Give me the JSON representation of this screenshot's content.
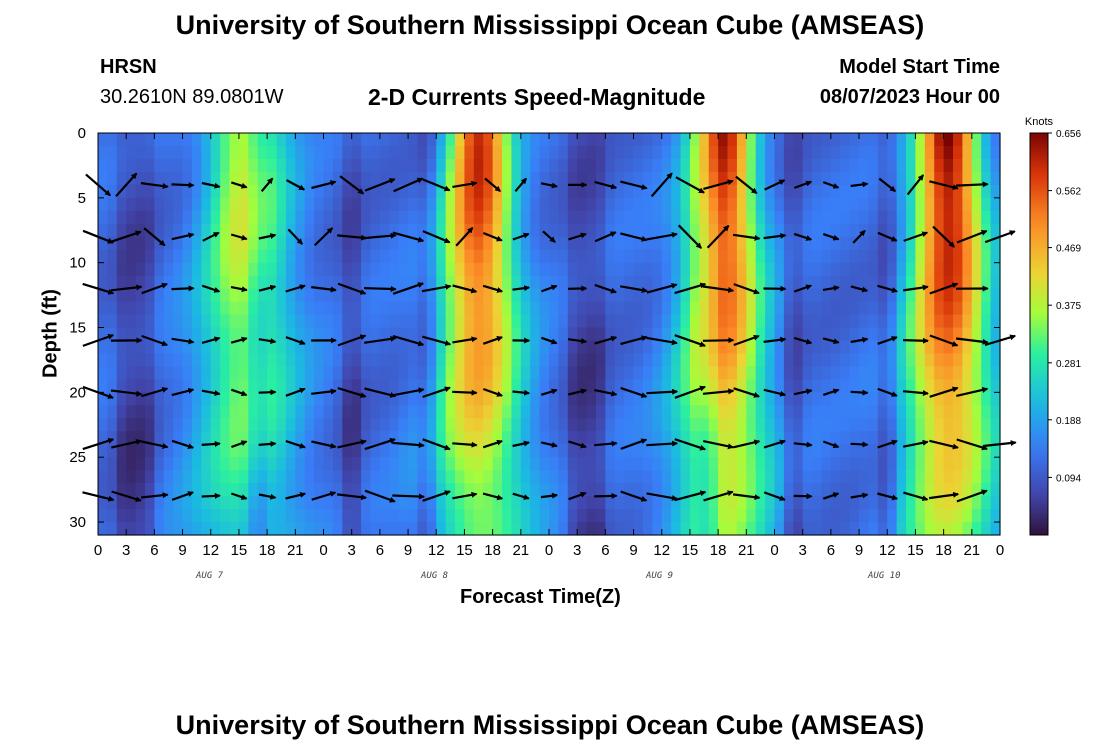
{
  "page": {
    "title_top": "University of Southern Mississippi Ocean Cube (AMSEAS)",
    "title_bottom": "University of Southern Mississippi Ocean Cube (AMSEAS)"
  },
  "header": {
    "station": "HRSN",
    "coords": "30.2610N  89.0801W",
    "subtitle": "2-D Currents Speed-Magnitude",
    "start_label": "Model Start Time",
    "start_value": "08/07/2023 Hour 00"
  },
  "chart_data": {
    "type": "heatmap",
    "title": "2-D Currents Speed-Magnitude",
    "xlabel": "Forecast Time(Z)",
    "ylabel": "Depth (ft)",
    "xlim": [
      0,
      96
    ],
    "ylim": [
      31,
      0
    ],
    "x_ticks": [
      0,
      3,
      6,
      9,
      12,
      15,
      18,
      21,
      24,
      27,
      30,
      33,
      36,
      39,
      42,
      45,
      48,
      51,
      54,
      57,
      60,
      63,
      66,
      69,
      72,
      75,
      78,
      81,
      84,
      87,
      90,
      93,
      96
    ],
    "x_tick_labels": [
      "0",
      "3",
      "6",
      "9",
      "12",
      "15",
      "18",
      "21",
      "0",
      "3",
      "6",
      "9",
      "12",
      "15",
      "18",
      "21",
      "0",
      "3",
      "6",
      "9",
      "12",
      "15",
      "18",
      "21",
      "0",
      "3",
      "6",
      "9",
      "12",
      "15",
      "18",
      "21",
      "0"
    ],
    "y_ticks": [
      0,
      5,
      10,
      15,
      20,
      25,
      30
    ],
    "y_tick_labels": [
      "0",
      "5",
      "10",
      "15",
      "20",
      "25",
      "30"
    ],
    "date_labels": [
      {
        "hour": 12,
        "text": "AUG 7"
      },
      {
        "hour": 36,
        "text": "AUG 8"
      },
      {
        "hour": 60,
        "text": "AUG 9"
      },
      {
        "hour": 84,
        "text": "AUG 10"
      }
    ],
    "colorbar": {
      "label": "Knots",
      "min": 0.0,
      "max": 0.656,
      "ticks": [
        0.656,
        0.562,
        0.469,
        0.375,
        0.281,
        0.188,
        0.094
      ],
      "tick_labels": [
        "0.656",
        "0.562",
        "0.469",
        "0.375",
        "0.281",
        "0.188",
        "0.094"
      ]
    },
    "speed_peaks": [
      {
        "hour": 14.5,
        "speed": 0.34
      },
      {
        "hour": 18,
        "speed": 0.25
      },
      {
        "hour": 40.5,
        "speed": 0.6
      },
      {
        "hour": 66.5,
        "speed": 0.62
      },
      {
        "hour": 90.5,
        "speed": 0.66
      }
    ],
    "arrow_depths": [
      4,
      8,
      12,
      16,
      20,
      24,
      28
    ],
    "arrow_hours": [
      0,
      3,
      6,
      9,
      12,
      15,
      18,
      21,
      24,
      27,
      30,
      33,
      36,
      39,
      42,
      45,
      48,
      51,
      54,
      57,
      60,
      63,
      66,
      69,
      72,
      75,
      78,
      81,
      84,
      87,
      90,
      93,
      96
    ]
  }
}
